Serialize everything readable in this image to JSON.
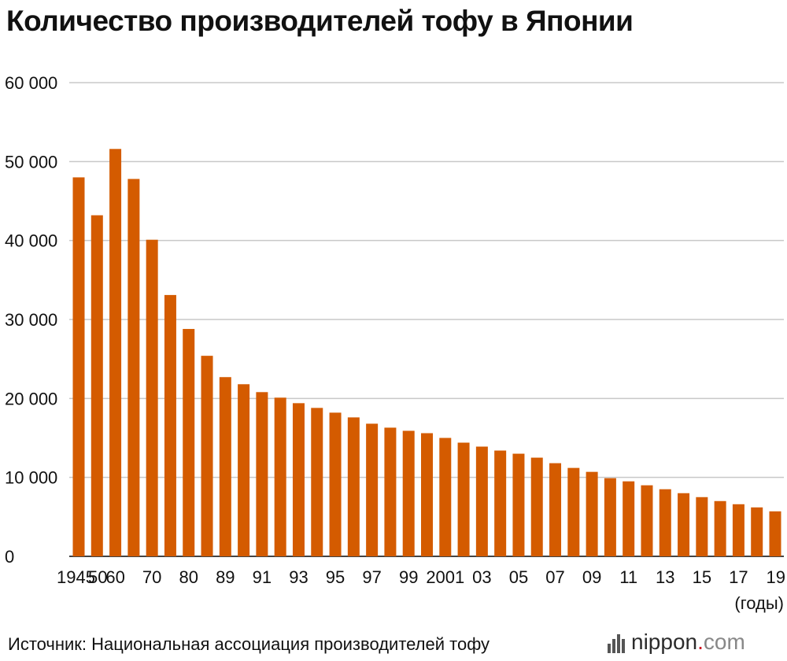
{
  "title": "Количество производителей тофу в Японии",
  "source": "Источник: Национальная ассоциация производителей тофу",
  "logo": {
    "name": "nippon",
    "dot": ".",
    "tld": "com"
  },
  "colors": {
    "bar": "#d45b00",
    "grid": "#c8c8c8",
    "text": "#111111"
  },
  "chart_data": {
    "type": "bar",
    "title": "Количество производителей тофу в Японии",
    "xlabel": "(годы)",
    "ylabel": "",
    "ylim": [
      0,
      60000
    ],
    "yticks": [
      0,
      10000,
      20000,
      30000,
      40000,
      50000,
      60000
    ],
    "ytick_labels": [
      "0",
      "10 000",
      "20 000",
      "30 000",
      "40 000",
      "50 000",
      "60 000"
    ],
    "grid": true,
    "categories": [
      "1945",
      "1950",
      "1960",
      "1965",
      "1970",
      "1975",
      "1980",
      "1985",
      "1989",
      "1990",
      "1991",
      "1992",
      "1993",
      "1994",
      "1995",
      "1996",
      "1997",
      "1998",
      "1999",
      "2000",
      "2001",
      "2002",
      "2003",
      "2004",
      "2005",
      "2006",
      "2007",
      "2008",
      "2009",
      "2010",
      "2011",
      "2012",
      "2013",
      "2014",
      "2015",
      "2016",
      "2017",
      "2018",
      "2019"
    ],
    "tick_labels": [
      "1945",
      "50",
      "60",
      "",
      "70",
      "",
      "80",
      "",
      "89",
      "",
      "91",
      "",
      "93",
      "",
      "95",
      "",
      "97",
      "",
      "99",
      "",
      "2001",
      "",
      "03",
      "",
      "05",
      "",
      "07",
      "",
      "09",
      "",
      "11",
      "",
      "13",
      "",
      "15",
      "",
      "17",
      "",
      "19"
    ],
    "values": [
      48000,
      43200,
      51600,
      47800,
      40100,
      33100,
      28800,
      25400,
      22700,
      21800,
      20800,
      20100,
      19400,
      18800,
      18200,
      17600,
      16800,
      16300,
      15900,
      15600,
      15000,
      14400,
      13900,
      13400,
      13000,
      12500,
      11800,
      11200,
      10700,
      9900,
      9500,
      9000,
      8500,
      8000,
      7500,
      7000,
      6600,
      6200,
      5700
    ]
  }
}
